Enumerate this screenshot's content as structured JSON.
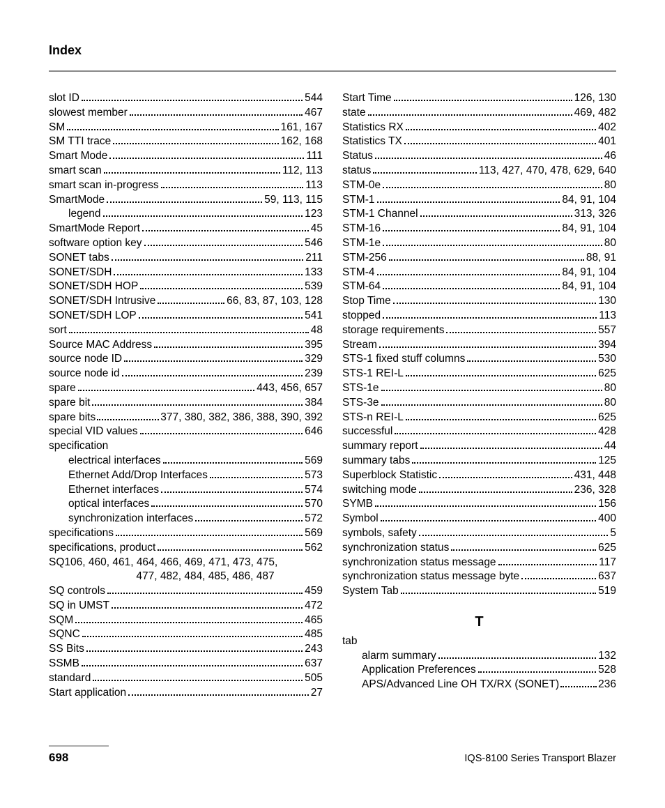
{
  "header": {
    "title": "Index"
  },
  "footer": {
    "page_number": "698",
    "product_name": "IQS-8100 Series Transport Blazer"
  },
  "section_letter": "T",
  "left_column": [
    {
      "term": "slot ID",
      "pages": "544",
      "indent": 0
    },
    {
      "term": "slowest member",
      "pages": "467",
      "indent": 0
    },
    {
      "term": "SM",
      "pages": "161, 167",
      "indent": 0
    },
    {
      "term": "SM TTI trace",
      "pages": "162, 168",
      "indent": 0
    },
    {
      "term": "Smart Mode",
      "pages": "111",
      "indent": 0
    },
    {
      "term": "smart scan",
      "pages": "112, 113",
      "indent": 0
    },
    {
      "term": "smart scan in-progress",
      "pages": "113",
      "indent": 0
    },
    {
      "term": "SmartMode",
      "pages": "59, 113, 115",
      "indent": 0
    },
    {
      "term": "legend",
      "pages": "123",
      "indent": 1
    },
    {
      "term": "SmartMode Report",
      "pages": "45",
      "indent": 0
    },
    {
      "term": "software option key",
      "pages": "546",
      "indent": 0
    },
    {
      "term": "SONET tabs",
      "pages": "211",
      "indent": 0
    },
    {
      "term": "SONET/SDH",
      "pages": "133",
      "indent": 0
    },
    {
      "term": "SONET/SDH HOP",
      "pages": "539",
      "indent": 0
    },
    {
      "term": "SONET/SDH Intrusive",
      "pages": "66, 83, 87, 103, 128",
      "indent": 0
    },
    {
      "term": "SONET/SDH LOP",
      "pages": "541",
      "indent": 0
    },
    {
      "term": "sort",
      "pages": "48",
      "indent": 0
    },
    {
      "term": "Source MAC Address",
      "pages": "395",
      "indent": 0
    },
    {
      "term": "source node ID",
      "pages": "329",
      "indent": 0
    },
    {
      "term": "source node id",
      "pages": "239",
      "indent": 0
    },
    {
      "term": "spare",
      "pages": "443, 456, 657",
      "indent": 0
    },
    {
      "term": "spare bit",
      "pages": "384",
      "indent": 0
    },
    {
      "term": "spare bits",
      "pages": "377, 380, 382, 386, 388, 390, 392",
      "indent": 0,
      "tight": true
    },
    {
      "term": "special VID values",
      "pages": "646",
      "indent": 0
    },
    {
      "term": "specification",
      "pages": "",
      "indent": 0,
      "no_pages": true
    },
    {
      "term": "electrical interfaces",
      "pages": "569",
      "indent": 1
    },
    {
      "term": "Ethernet Add/Drop Interfaces",
      "pages": "573",
      "indent": 1
    },
    {
      "term": "Ethernet interfaces",
      "pages": "574",
      "indent": 1
    },
    {
      "term": "optical interfaces",
      "pages": "570",
      "indent": 1
    },
    {
      "term": "synchronization interfaces",
      "pages": "572",
      "indent": 1
    },
    {
      "term": "specifications",
      "pages": "569",
      "indent": 0
    },
    {
      "term": "specifications, product",
      "pages": "562",
      "indent": 0
    },
    {
      "term": "SQ106, 460, 461, 464, 466, 469, 471, 473, 475,",
      "pages": "",
      "indent": 0,
      "no_pages": true,
      "wrap": true
    },
    {
      "continuation": "477, 482, 484, 485, 486, 487"
    },
    {
      "term": "SQ controls",
      "pages": "459",
      "indent": 0
    },
    {
      "term": "SQ in UMST",
      "pages": "472",
      "indent": 0
    },
    {
      "term": "SQM",
      "pages": "465",
      "indent": 0
    },
    {
      "term": "SQNC",
      "pages": "485",
      "indent": 0
    },
    {
      "term": "SS Bits",
      "pages": "243",
      "indent": 0
    },
    {
      "term": "SSMB",
      "pages": "637",
      "indent": 0
    },
    {
      "term": "standard",
      "pages": "505",
      "indent": 0
    },
    {
      "term": "Start application",
      "pages": "27",
      "indent": 0
    }
  ],
  "right_column_top": [
    {
      "term": "Start Time",
      "pages": "126, 130",
      "indent": 0
    },
    {
      "term": "state",
      "pages": "469, 482",
      "indent": 0
    },
    {
      "term": "Statistics RX",
      "pages": "402",
      "indent": 0
    },
    {
      "term": "Statistics TX",
      "pages": "401",
      "indent": 0
    },
    {
      "term": "Status",
      "pages": "46",
      "indent": 0
    },
    {
      "term": "status",
      "pages": "113, 427, 470, 478, 629, 640",
      "indent": 0
    },
    {
      "term": "STM-0e",
      "pages": "80",
      "indent": 0
    },
    {
      "term": "STM-1",
      "pages": "84, 91, 104",
      "indent": 0
    },
    {
      "term": "STM-1 Channel",
      "pages": "313, 326",
      "indent": 0
    },
    {
      "term": "STM-16",
      "pages": "84, 91, 104",
      "indent": 0
    },
    {
      "term": "STM-1e",
      "pages": "80",
      "indent": 0
    },
    {
      "term": "STM-256",
      "pages": "88, 91",
      "indent": 0
    },
    {
      "term": "STM-4",
      "pages": "84, 91, 104",
      "indent": 0
    },
    {
      "term": "STM-64",
      "pages": "84, 91, 104",
      "indent": 0
    },
    {
      "term": "Stop Time",
      "pages": "130",
      "indent": 0
    },
    {
      "term": "stopped",
      "pages": "113",
      "indent": 0
    },
    {
      "term": "storage requirements",
      "pages": "557",
      "indent": 0
    },
    {
      "term": "Stream",
      "pages": "394",
      "indent": 0
    },
    {
      "term": "STS-1 fixed stuff columns",
      "pages": "530",
      "indent": 0
    },
    {
      "term": "STS-1 REI-L",
      "pages": "625",
      "indent": 0
    },
    {
      "term": "STS-1e",
      "pages": "80",
      "indent": 0
    },
    {
      "term": "STS-3e",
      "pages": "80",
      "indent": 0
    },
    {
      "term": "STS-n REI-L",
      "pages": "625",
      "indent": 0
    },
    {
      "term": "successful",
      "pages": "428",
      "indent": 0
    },
    {
      "term": "summary report",
      "pages": "44",
      "indent": 0
    },
    {
      "term": "summary tabs",
      "pages": "125",
      "indent": 0
    },
    {
      "term": "Superblock Statistic",
      "pages": "431, 448",
      "indent": 0
    },
    {
      "term": "switching mode",
      "pages": "236, 328",
      "indent": 0
    },
    {
      "term": "SYMB",
      "pages": "156",
      "indent": 0
    },
    {
      "term": "Symbol",
      "pages": "400",
      "indent": 0
    },
    {
      "term": "symbols, safety",
      "pages": "5",
      "indent": 0
    },
    {
      "term": "synchronization status",
      "pages": "625",
      "indent": 0
    },
    {
      "term": "synchronization status message",
      "pages": "117",
      "indent": 0
    },
    {
      "term": "synchronization status message byte",
      "pages": "637",
      "indent": 0
    },
    {
      "term": "System Tab",
      "pages": "519",
      "indent": 0
    }
  ],
  "right_column_bottom": [
    {
      "term": "tab",
      "pages": "",
      "indent": 0,
      "no_pages": true
    },
    {
      "term": "alarm summary",
      "pages": "132",
      "indent": 1
    },
    {
      "term": "Application Preferences",
      "pages": "528",
      "indent": 1
    },
    {
      "term": "APS/Advanced Line OH TX/RX (SONET)",
      "pages": "236",
      "indent": 1,
      "tight": true
    }
  ]
}
